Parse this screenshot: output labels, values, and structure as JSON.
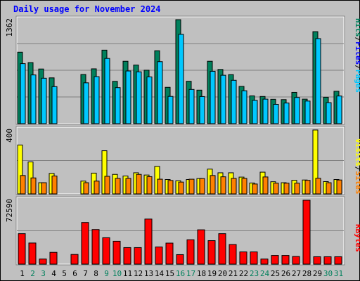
{
  "title": "Daily usage for November 2024",
  "colors": {
    "hits": "#00805c",
    "files": "#0000ff",
    "files_bar": "#00c8ff",
    "pages": "#00c8ff",
    "visits": "#ffff00",
    "sites": "#ff8000",
    "kbytes": "#ff0000",
    "weekday_label": "#000000",
    "weekend_label": "#00805c",
    "title": "#0000ff"
  },
  "weekend_days": [
    2,
    3,
    9,
    10,
    16,
    17,
    23,
    24,
    30,
    31
  ],
  "chart_data": [
    {
      "type": "bar",
      "name": "hits-files-pages",
      "max_label": "1362",
      "ylim": [
        0,
        1362
      ],
      "categories": [
        "1",
        "2",
        "3",
        "4",
        "5",
        "6",
        "7",
        "8",
        "9",
        "10",
        "11",
        "12",
        "13",
        "14",
        "15",
        "16",
        "17",
        "18",
        "19",
        "20",
        "21",
        "22",
        "23",
        "24",
        "25",
        "26",
        "27",
        "28",
        "29",
        "30",
        "31"
      ],
      "legend": {
        "pages": "Pages",
        "files": "Files",
        "hits": "Hits",
        "sep": "/"
      },
      "series": [
        {
          "name": "Hits",
          "values": [
            936,
            800,
            716,
            600,
            0,
            0,
            644,
            718,
            963,
            554,
            817,
            768,
            700,
            955,
            476,
            1362,
            555,
            439,
            817,
            710,
            642,
            488,
            364,
            356,
            319,
            315,
            410,
            321,
            1205,
            346,
            424
          ]
        },
        {
          "name": "Files",
          "values": [
            786,
            638,
            595,
            485,
            0,
            0,
            535,
            616,
            854,
            472,
            690,
            679,
            612,
            812,
            357,
            1170,
            448,
            355,
            686,
            634,
            568,
            431,
            305,
            321,
            253,
            270,
            343,
            296,
            1114,
            275,
            362
          ]
        },
        {
          "name": "Pages",
          "values": [
            0,
            0,
            0,
            0,
            0,
            0,
            0,
            0,
            0,
            0,
            0,
            0,
            0,
            0,
            0,
            0,
            0,
            0,
            0,
            0,
            0,
            0,
            0,
            0,
            0,
            0,
            0,
            0,
            0,
            0,
            0
          ]
        }
      ]
    },
    {
      "type": "bar",
      "name": "visits-sites",
      "max_label": "400",
      "ylim": [
        0,
        400
      ],
      "categories": [
        "1",
        "2",
        "3",
        "4",
        "5",
        "6",
        "7",
        "8",
        "9",
        "10",
        "11",
        "12",
        "13",
        "14",
        "15",
        "16",
        "17",
        "18",
        "19",
        "20",
        "21",
        "22",
        "23",
        "24",
        "25",
        "26",
        "27",
        "28",
        "29",
        "30",
        "31"
      ],
      "legend": {
        "sites": "Sites",
        "visits": "Visits",
        "sep": "/"
      },
      "series": [
        {
          "name": "Visits",
          "values": [
            306,
            200,
            70,
            128,
            0,
            0,
            80,
            130,
            270,
            122,
            112,
            132,
            118,
            172,
            90,
            82,
            90,
            96,
            155,
            132,
            132,
            105,
            68,
            136,
            76,
            70,
            85,
            87,
            400,
            77,
            90
          ]
        },
        {
          "name": "Sites",
          "values": [
            115,
            100,
            70,
            112,
            0,
            0,
            70,
            80,
            110,
            97,
            97,
            122,
            108,
            92,
            84,
            74,
            92,
            96,
            115,
            107,
            97,
            97,
            62,
            106,
            67,
            67,
            67,
            85,
            98,
            70,
            87
          ]
        }
      ]
    },
    {
      "type": "bar",
      "name": "kbytes",
      "max_label": "72590",
      "ylim": [
        0,
        72590
      ],
      "categories": [
        "1",
        "2",
        "3",
        "4",
        "5",
        "6",
        "7",
        "8",
        "9",
        "10",
        "11",
        "12",
        "13",
        "14",
        "15",
        "16",
        "17",
        "18",
        "19",
        "20",
        "21",
        "22",
        "23",
        "24",
        "25",
        "26",
        "27",
        "28",
        "29",
        "30",
        "31"
      ],
      "legend": {
        "kbytes": "KBytes"
      },
      "series": [
        {
          "name": "KBytes",
          "values": [
            34600,
            24000,
            5800,
            13400,
            0,
            11000,
            47300,
            39300,
            30000,
            26000,
            18800,
            18800,
            51200,
            19500,
            23900,
            10800,
            27700,
            39000,
            26700,
            34600,
            22300,
            13900,
            13900,
            5800,
            9900,
            9900,
            8700,
            72590,
            8400,
            8400,
            8400
          ]
        }
      ]
    }
  ]
}
